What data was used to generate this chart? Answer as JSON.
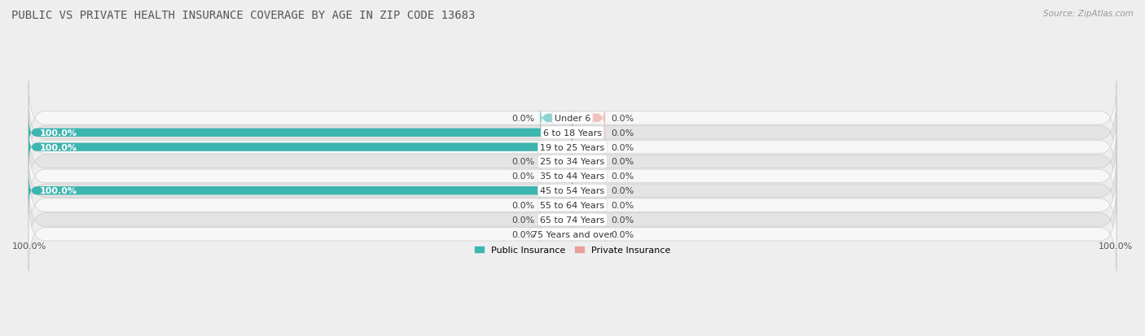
{
  "title": "PUBLIC VS PRIVATE HEALTH INSURANCE COVERAGE BY AGE IN ZIP CODE 13683",
  "source": "Source: ZipAtlas.com",
  "categories": [
    "Under 6",
    "6 to 18 Years",
    "19 to 25 Years",
    "25 to 34 Years",
    "35 to 44 Years",
    "45 to 54 Years",
    "55 to 64 Years",
    "65 to 74 Years",
    "75 Years and over"
  ],
  "public_values": [
    0.0,
    100.0,
    100.0,
    0.0,
    0.0,
    100.0,
    0.0,
    0.0,
    0.0
  ],
  "private_values": [
    0.0,
    0.0,
    0.0,
    0.0,
    0.0,
    0.0,
    0.0,
    0.0,
    0.0
  ],
  "public_color": "#3db5b0",
  "private_color": "#e8a09a",
  "public_stub_color": "#8dd3d0",
  "private_stub_color": "#f0c0bb",
  "public_label": "Public Insurance",
  "private_label": "Private Insurance",
  "bg_color": "#eeeeee",
  "row_bg_even": "#f7f7f7",
  "row_bg_odd": "#e4e4e4",
  "xlim_left": -100,
  "xlim_right": 100,
  "bar_height": 0.58,
  "stub_size": 6.0,
  "title_fontsize": 10,
  "label_fontsize": 8,
  "value_fontsize": 8,
  "tick_fontsize": 8,
  "legend_fontsize": 8,
  "source_fontsize": 7.5
}
